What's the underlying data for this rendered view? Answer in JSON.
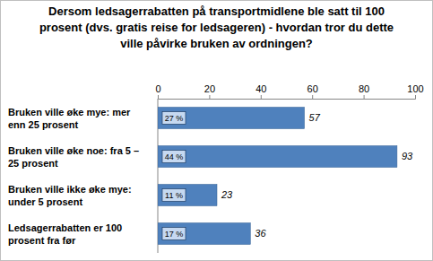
{
  "chart_data": {
    "type": "bar",
    "orientation": "horizontal",
    "title": "Dersom ledsagerrabatten på transportmidlene ble satt til 100 prosent (dvs. gratis reise for ledsageren) - hvordan tror du dette ville påvirke bruken av ordningen?",
    "categories": [
      "Bruken ville øke mye: mer enn 25 prosent",
      "Bruken ville øke noe: fra 5 – 25 prosent",
      "Bruken ville ikke øke mye: under 5 prosent",
      "Ledsagerrabatten er 100 prosent fra før"
    ],
    "values": [
      57,
      93,
      23,
      36
    ],
    "percentages": [
      27,
      44,
      11,
      17
    ],
    "percentage_labels": [
      "27 %",
      "44 %",
      "11 %",
      "17 %"
    ],
    "data_labels": true,
    "color": "#4f81bd",
    "xlim": [
      0,
      100
    ],
    "xticks": [
      0,
      20,
      40,
      60,
      80,
      100
    ],
    "grid": false
  }
}
